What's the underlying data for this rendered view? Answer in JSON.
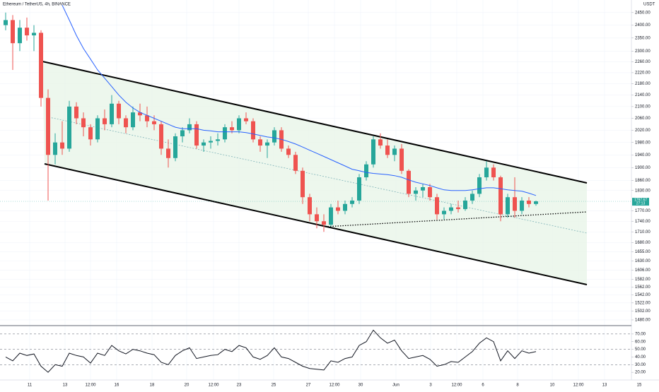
{
  "chart_data": [
    {
      "type": "candlestick",
      "title": "Ethereum / TetherUS, 4h, BINANCE",
      "axis_label": "USDT",
      "up_color": "#26a69a",
      "down_color": "#ef5350",
      "open": [
        2400,
        2420,
        2330,
        2390,
        2360,
        2370,
        2130,
        1940,
        1980,
        1960,
        2100,
        2060,
        2030,
        1990,
        2060,
        2040,
        2110,
        2060,
        2030,
        2080,
        2070,
        2050,
        2040,
        1960,
        1930,
        2000,
        2020,
        2040,
        1970,
        1980,
        1985,
        1990,
        2030,
        2020,
        2060,
        2050,
        1990,
        1970,
        1980,
        2020,
        1960,
        1940,
        1890,
        1810,
        1760,
        1740,
        1730,
        1780,
        1770,
        1790,
        1800,
        1870,
        1910,
        1990,
        1970,
        1940,
        1960,
        1890,
        1820,
        1830,
        1840,
        1810,
        1760,
        1770,
        1780,
        1775,
        1800,
        1820,
        1870,
        1900,
        1870,
        1760,
        1810,
        1770,
        1800,
        1790
      ],
      "high": [
        2450,
        2440,
        2420,
        2430,
        2400,
        2380,
        2160,
        2010,
        2050,
        2120,
        2115,
        2080,
        2040,
        2070,
        2090,
        2140,
        2120,
        2070,
        2100,
        2110,
        2100,
        2070,
        2050,
        1990,
        2010,
        2030,
        2060,
        2050,
        1990,
        2000,
        2010,
        2040,
        2050,
        2070,
        2080,
        2060,
        2000,
        1990,
        2030,
        2030,
        1970,
        1950,
        1900,
        1820,
        1780,
        1760,
        1790,
        1800,
        1800,
        1810,
        1880,
        1920,
        2000,
        2010,
        1990,
        1970,
        1975,
        1895,
        1840,
        1850,
        1850,
        1820,
        1780,
        1790,
        1800,
        1810,
        1830,
        1880,
        1920,
        1910,
        1875,
        1820,
        1870,
        1810,
        1810,
        1800
      ],
      "low": [
        2380,
        2230,
        2300,
        2340,
        2300,
        2100,
        1800,
        1910,
        1940,
        1950,
        2040,
        2000,
        1970,
        1980,
        2020,
        2030,
        2040,
        2010,
        2020,
        2050,
        2030,
        2020,
        1940,
        1900,
        1920,
        1980,
        2010,
        1960,
        1950,
        1960,
        1970,
        1980,
        2010,
        2010,
        2040,
        1980,
        1950,
        1930,
        1970,
        1950,
        1930,
        1880,
        1790,
        1740,
        1720,
        1710,
        1725,
        1760,
        1760,
        1780,
        1790,
        1860,
        1900,
        1960,
        1930,
        1920,
        1880,
        1810,
        1800,
        1810,
        1800,
        1745,
        1745,
        1760,
        1765,
        1770,
        1790,
        1810,
        1860,
        1860,
        1740,
        1750,
        1750,
        1760,
        1780,
        1785
      ],
      "close": [
        2420,
        2330,
        2390,
        2360,
        2370,
        2130,
        1940,
        1980,
        1960,
        2100,
        2060,
        2030,
        1990,
        2060,
        2040,
        2110,
        2060,
        2030,
        2080,
        2070,
        2050,
        2040,
        1960,
        1930,
        2000,
        2020,
        2040,
        1970,
        1980,
        1985,
        1990,
        2030,
        2020,
        2060,
        2050,
        1990,
        1970,
        1980,
        2020,
        1960,
        1940,
        1890,
        1810,
        1760,
        1740,
        1730,
        1780,
        1770,
        1790,
        1800,
        1870,
        1910,
        1990,
        1970,
        1940,
        1960,
        1890,
        1820,
        1830,
        1840,
        1810,
        1760,
        1770,
        1780,
        1775,
        1800,
        1820,
        1870,
        1900,
        1870,
        1760,
        1810,
        1770,
        1800,
        1790,
        1797.67
      ],
      "ma": {
        "color": "#2962ff",
        "values": [
          null,
          null,
          null,
          null,
          null,
          null,
          null,
          null,
          2480,
          2420,
          2360,
          2310,
          2270,
          2230,
          2200,
          2170,
          2140,
          2115,
          2095,
          2080,
          2070,
          2060,
          2050,
          2040,
          2030,
          2025,
          2025,
          2025,
          2020,
          2018,
          2015,
          2015,
          2015,
          2015,
          2012,
          2008,
          2003,
          1998,
          1995,
          1990,
          1983,
          1975,
          1965,
          1955,
          1945,
          1935,
          1925,
          1915,
          1905,
          1895,
          1890,
          1885,
          1882,
          1880,
          1878,
          1875,
          1870,
          1862,
          1855,
          1850,
          1845,
          1838,
          1832,
          1830,
          1830,
          1830,
          1832,
          1835,
          1838,
          1838,
          1835,
          1832,
          1830,
          1828,
          1822,
          1815
        ]
      },
      "last_price": 1797.67,
      "countdown": "27:13",
      "log": true,
      "ylim": [
        1468,
        2501
      ],
      "yticks": [
        {
          "value": 2450,
          "label": "2450.00"
        },
        {
          "value": 2400,
          "label": "2400.00"
        },
        {
          "value": 2350,
          "label": "2350.00"
        },
        {
          "value": 2300,
          "label": "2300.00"
        },
        {
          "value": 2260,
          "label": "2260.00"
        },
        {
          "value": 2220,
          "label": "2220.00"
        },
        {
          "value": 2180,
          "label": "2180.00"
        },
        {
          "value": 2140,
          "label": "2140.00"
        },
        {
          "value": 2100,
          "label": "2100.00"
        },
        {
          "value": 2060,
          "label": "2060.00"
        },
        {
          "value": 2020,
          "label": "2020.00"
        },
        {
          "value": 1980,
          "label": "1980.00"
        },
        {
          "value": 1940,
          "label": "1940.00"
        },
        {
          "value": 1900,
          "label": "1900.00"
        },
        {
          "value": 1860,
          "label": "1860.00"
        },
        {
          "value": 1830,
          "label": "1830.00"
        },
        {
          "value": 1770,
          "label": "1770.00"
        },
        {
          "value": 1740,
          "label": "1740.00"
        },
        {
          "value": 1710,
          "label": "1710.00"
        },
        {
          "value": 1680,
          "label": "1680.00"
        },
        {
          "value": 1655,
          "label": "1655.00"
        },
        {
          "value": 1630,
          "label": "1630.00"
        },
        {
          "value": 1606,
          "label": "1606.00"
        },
        {
          "value": 1582,
          "label": "1582.00"
        },
        {
          "value": 1562,
          "label": "1562.00"
        },
        {
          "value": 1542,
          "label": "1542.00"
        },
        {
          "value": 1522,
          "label": "1522.00"
        },
        {
          "value": 1502,
          "label": "1502.00"
        },
        {
          "value": 1480,
          "label": "1480.00"
        }
      ],
      "xlim": [
        -0.8,
        92.4
      ],
      "xticks": [
        {
          "value": 3.4,
          "label": "11"
        },
        {
          "value": 8.4,
          "label": "13"
        },
        {
          "value": 12,
          "label": "12:00"
        },
        {
          "value": 15.7,
          "label": "16"
        },
        {
          "value": 20.7,
          "label": "18"
        },
        {
          "value": 25.6,
          "label": "20"
        },
        {
          "value": 29.4,
          "label": "12:00"
        },
        {
          "value": 33,
          "label": "23"
        },
        {
          "value": 37.9,
          "label": "25"
        },
        {
          "value": 42.8,
          "label": "27"
        },
        {
          "value": 46.5,
          "label": "12:00"
        },
        {
          "value": 50.2,
          "label": "30"
        },
        {
          "value": 55.2,
          "label": "Jun"
        },
        {
          "value": 60.1,
          "label": "3"
        },
        {
          "value": 63.8,
          "label": "12:00"
        },
        {
          "value": 67.5,
          "label": "6"
        },
        {
          "value": 72.4,
          "label": "8"
        },
        {
          "value": 77.3,
          "label": "10"
        },
        {
          "value": 81,
          "label": "12:00"
        },
        {
          "value": 84.7,
          "label": "13"
        },
        {
          "value": 89.6,
          "label": "15"
        }
      ]
    },
    {
      "type": "line",
      "color": "#131722",
      "values": [
        40,
        35,
        45,
        42,
        44,
        28,
        20,
        30,
        28,
        45,
        42,
        40,
        32,
        45,
        42,
        55,
        48,
        44,
        50,
        48,
        45,
        43,
        33,
        30,
        42,
        48,
        52,
        38,
        40,
        42,
        43,
        50,
        47,
        55,
        52,
        40,
        37,
        42,
        52,
        40,
        38,
        33,
        28,
        25,
        24,
        23,
        35,
        33,
        38,
        40,
        55,
        60,
        75,
        65,
        58,
        62,
        48,
        38,
        40,
        42,
        37,
        28,
        30,
        34,
        33,
        40,
        47,
        58,
        65,
        60,
        35,
        48,
        38,
        48,
        45,
        47
      ],
      "levels": [
        70,
        50,
        30
      ],
      "ylim": [
        10,
        80
      ],
      "yticks": [
        {
          "value": 70,
          "label": "70.00"
        },
        {
          "value": 60,
          "label": "60.00"
        },
        {
          "value": 50,
          "label": "50.00"
        },
        {
          "value": 40,
          "label": "40.00"
        },
        {
          "value": 30,
          "label": "30.00"
        },
        {
          "value": 20,
          "label": "20.00"
        }
      ]
    }
  ]
}
